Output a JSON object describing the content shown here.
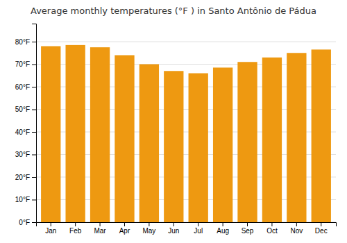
{
  "chart_data": {
    "type": "bar",
    "title": "Average monthly temperatures (°F ) in Santo Antônio de Pádua",
    "categories": [
      "Jan",
      "Feb",
      "Mar",
      "Apr",
      "May",
      "Jun",
      "Jul",
      "Aug",
      "Sep",
      "Oct",
      "Nov",
      "Dec"
    ],
    "values": [
      78.0,
      78.5,
      77.5,
      74.0,
      70.0,
      67.0,
      66.0,
      68.5,
      71.0,
      73.0,
      75.0,
      76.5
    ],
    "color": "#ee9911",
    "ylim": [
      0,
      88
    ],
    "yticks": [
      {
        "value": 0,
        "label": "0°F"
      },
      {
        "value": 10,
        "label": "10°F"
      },
      {
        "value": 20,
        "label": "20°F"
      },
      {
        "value": 30,
        "label": "30°F"
      },
      {
        "value": 40,
        "label": "40°F"
      },
      {
        "value": 50,
        "label": "50°F"
      },
      {
        "value": 60,
        "label": "60°F"
      },
      {
        "value": 70,
        "label": "70°F"
      },
      {
        "value": 80,
        "label": "80°F"
      }
    ],
    "grid": true
  }
}
